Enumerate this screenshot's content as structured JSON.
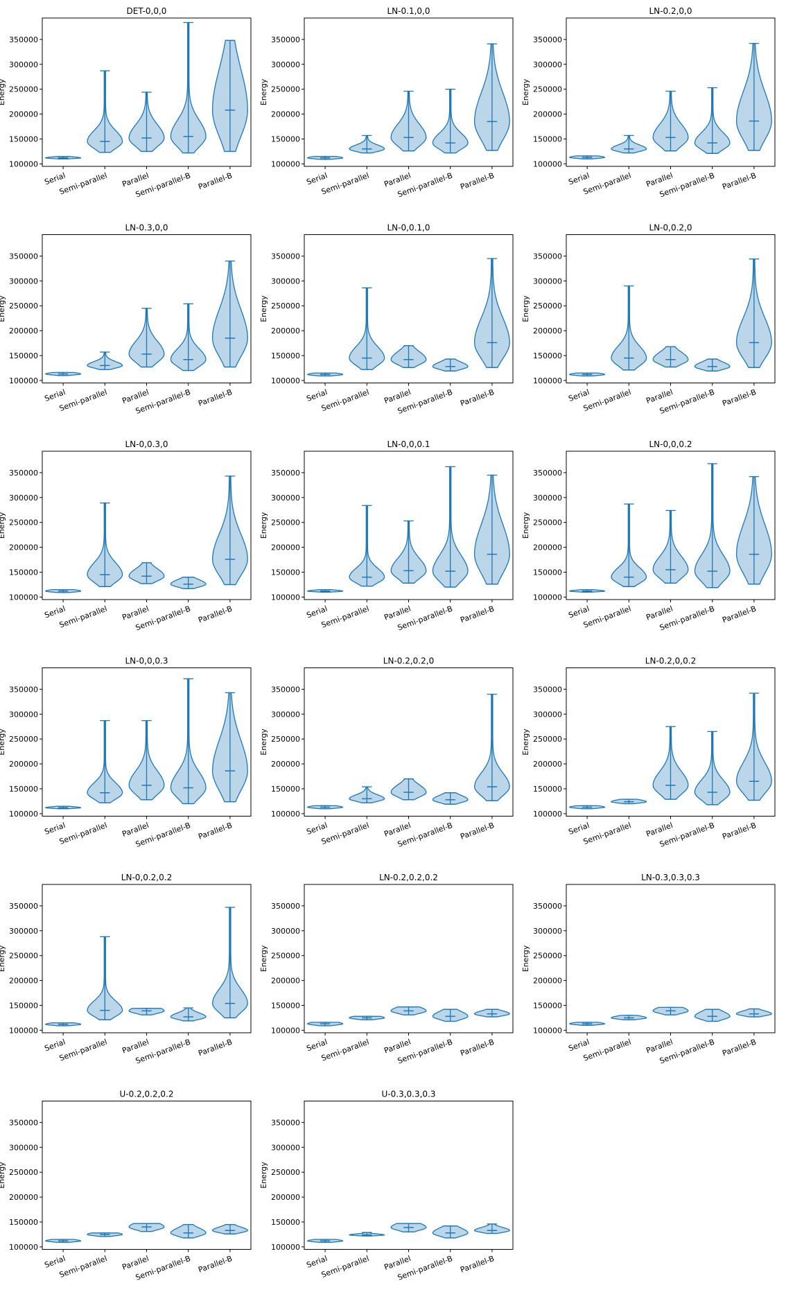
{
  "chart_data": [
    {
      "type": "violin",
      "title": "DET-0,0,0",
      "ylabel": "Energy",
      "categories": [
        "Serial",
        "Semi-parallel",
        "Parallel",
        "Semi-parallel-B",
        "Parallel-B"
      ],
      "min": [
        110000,
        123000,
        125000,
        122000,
        125000
      ],
      "median": [
        112000,
        145000,
        152000,
        155000,
        208000
      ],
      "max": [
        115000,
        287000,
        244000,
        384000,
        348000
      ],
      "color": "#1f77b4",
      "ylim": [
        95000,
        393000
      ],
      "yticks": [
        100000,
        150000,
        200000,
        250000,
        300000,
        350000
      ]
    },
    {
      "type": "violin",
      "title": "LN-0.1,0,0",
      "ylabel": "Energy",
      "categories": [
        "Serial",
        "Semi-parallel",
        "Parallel",
        "Semi-parallel-B",
        "Parallel-B"
      ],
      "min": [
        109000,
        122000,
        126000,
        122000,
        127000
      ],
      "median": [
        112000,
        130000,
        153000,
        142000,
        185000
      ],
      "max": [
        115000,
        157000,
        246000,
        250000,
        341000
      ],
      "color": "#1f77b4",
      "ylim": [
        95000,
        393000
      ],
      "yticks": [
        100000,
        150000,
        200000,
        250000,
        300000,
        350000
      ]
    },
    {
      "type": "violin",
      "title": "LN-0.2,0,0",
      "ylabel": "Energy",
      "categories": [
        "Serial",
        "Semi-parallel",
        "Parallel",
        "Semi-parallel-B",
        "Parallel-B"
      ],
      "min": [
        110000,
        122000,
        126000,
        121000,
        127000
      ],
      "median": [
        113000,
        130000,
        153000,
        142000,
        186000
      ],
      "max": [
        116000,
        157000,
        246000,
        253000,
        342000
      ],
      "color": "#1f77b4",
      "ylim": [
        95000,
        393000
      ],
      "yticks": [
        100000,
        150000,
        200000,
        250000,
        300000,
        350000
      ]
    },
    {
      "type": "violin",
      "title": "LN-0.3,0,0",
      "ylabel": "Energy",
      "categories": [
        "Serial",
        "Semi-parallel",
        "Parallel",
        "Semi-parallel-B",
        "Parallel-B"
      ],
      "min": [
        110000,
        122000,
        127000,
        120000,
        127000
      ],
      "median": [
        113000,
        130000,
        153000,
        142000,
        185000
      ],
      "max": [
        116000,
        157000,
        245000,
        254000,
        340000
      ],
      "color": "#1f77b4",
      "ylim": [
        95000,
        393000
      ],
      "yticks": [
        100000,
        150000,
        200000,
        250000,
        300000,
        350000
      ]
    },
    {
      "type": "violin",
      "title": "LN-0,0.1,0",
      "ylabel": "Energy",
      "categories": [
        "Serial",
        "Semi-parallel",
        "Parallel",
        "Semi-parallel-B",
        "Parallel-B"
      ],
      "min": [
        109000,
        122000,
        126000,
        119000,
        126000
      ],
      "median": [
        112000,
        145000,
        142000,
        128000,
        176000
      ],
      "max": [
        115000,
        286000,
        170000,
        143000,
        345000
      ],
      "color": "#1f77b4",
      "ylim": [
        95000,
        393000
      ],
      "yticks": [
        100000,
        150000,
        200000,
        250000,
        300000,
        350000
      ]
    },
    {
      "type": "violin",
      "title": "LN-0,0.2,0",
      "ylabel": "Energy",
      "categories": [
        "Serial",
        "Semi-parallel",
        "Parallel",
        "Semi-parallel-B",
        "Parallel-B"
      ],
      "min": [
        109000,
        121000,
        127000,
        119000,
        126000
      ],
      "median": [
        112000,
        145000,
        142000,
        128000,
        176000
      ],
      "max": [
        115000,
        290000,
        168000,
        143000,
        344000
      ],
      "color": "#1f77b4",
      "ylim": [
        95000,
        393000
      ],
      "yticks": [
        100000,
        150000,
        200000,
        250000,
        300000,
        350000
      ]
    },
    {
      "type": "violin",
      "title": "LN-0,0.3,0",
      "ylabel": "Energy",
      "categories": [
        "Serial",
        "Semi-parallel",
        "Parallel",
        "Semi-parallel-B",
        "Parallel-B"
      ],
      "min": [
        109000,
        121000,
        127000,
        117000,
        125000
      ],
      "median": [
        112000,
        145000,
        142000,
        126000,
        176000
      ],
      "max": [
        115000,
        289000,
        169000,
        140000,
        343000
      ],
      "color": "#1f77b4",
      "ylim": [
        95000,
        393000
      ],
      "yticks": [
        100000,
        150000,
        200000,
        250000,
        300000,
        350000
      ]
    },
    {
      "type": "violin",
      "title": "LN-0,0,0.1",
      "ylabel": "Energy",
      "categories": [
        "Serial",
        "Semi-parallel",
        "Parallel",
        "Semi-parallel-B",
        "Parallel-B"
      ],
      "min": [
        110000,
        122000,
        128000,
        120000,
        126000
      ],
      "median": [
        112000,
        140000,
        153000,
        152000,
        186000
      ],
      "max": [
        115000,
        284000,
        253000,
        362000,
        345000
      ],
      "color": "#1f77b4",
      "ylim": [
        95000,
        393000
      ],
      "yticks": [
        100000,
        150000,
        200000,
        250000,
        300000,
        350000
      ]
    },
    {
      "type": "violin",
      "title": "LN-0,0,0.2",
      "ylabel": "Energy",
      "categories": [
        "Serial",
        "Semi-parallel",
        "Parallel",
        "Semi-parallel-B",
        "Parallel-B"
      ],
      "min": [
        110000,
        121000,
        128000,
        119000,
        126000
      ],
      "median": [
        112000,
        140000,
        155000,
        152000,
        186000
      ],
      "max": [
        115000,
        287000,
        274000,
        368000,
        342000
      ],
      "color": "#1f77b4",
      "ylim": [
        95000,
        393000
      ],
      "yticks": [
        100000,
        150000,
        200000,
        250000,
        300000,
        350000
      ]
    },
    {
      "type": "violin",
      "title": "LN-0,0,0.3",
      "ylabel": "Energy",
      "categories": [
        "Serial",
        "Semi-parallel",
        "Parallel",
        "Semi-parallel-B",
        "Parallel-B"
      ],
      "min": [
        110000,
        122000,
        128000,
        120000,
        124000
      ],
      "median": [
        112000,
        142000,
        157000,
        152000,
        186000
      ],
      "max": [
        115000,
        287000,
        287000,
        371000,
        343000
      ],
      "color": "#1f77b4",
      "ylim": [
        95000,
        393000
      ],
      "yticks": [
        100000,
        150000,
        200000,
        250000,
        300000,
        350000
      ]
    },
    {
      "type": "violin",
      "title": "LN-0.2,0.2,0",
      "ylabel": "Energy",
      "categories": [
        "Serial",
        "Semi-parallel",
        "Parallel",
        "Semi-parallel-B",
        "Parallel-B"
      ],
      "min": [
        110000,
        122000,
        128000,
        119000,
        126000
      ],
      "median": [
        113000,
        130000,
        143000,
        128000,
        154000
      ],
      "max": [
        116000,
        154000,
        170000,
        142000,
        340000
      ],
      "color": "#1f77b4",
      "ylim": [
        95000,
        393000
      ],
      "yticks": [
        100000,
        150000,
        200000,
        250000,
        300000,
        350000
      ]
    },
    {
      "type": "violin",
      "title": "LN-0.2,0,0.2",
      "ylabel": "Energy",
      "categories": [
        "Serial",
        "Semi-parallel",
        "Parallel",
        "Semi-parallel-B",
        "Parallel-B"
      ],
      "min": [
        110000,
        120000,
        129000,
        118000,
        127000
      ],
      "median": [
        113000,
        124000,
        157000,
        143000,
        165000
      ],
      "max": [
        116000,
        129000,
        275000,
        265000,
        342000
      ],
      "color": "#1f77b4",
      "ylim": [
        95000,
        393000
      ],
      "yticks": [
        100000,
        150000,
        200000,
        250000,
        300000,
        350000
      ]
    },
    {
      "type": "violin",
      "title": "LN-0,0.2,0.2",
      "ylabel": "Energy",
      "categories": [
        "Serial",
        "Semi-parallel",
        "Parallel",
        "Semi-parallel-B",
        "Parallel-B"
      ],
      "min": [
        109000,
        121000,
        131000,
        119000,
        125000
      ],
      "median": [
        112000,
        140000,
        139000,
        127000,
        154000
      ],
      "max": [
        115000,
        288000,
        144000,
        145000,
        347000
      ],
      "color": "#1f77b4",
      "ylim": [
        95000,
        393000
      ],
      "yticks": [
        100000,
        150000,
        200000,
        250000,
        300000,
        350000
      ]
    },
    {
      "type": "violin",
      "title": "LN-0.2,0.2,0.2",
      "ylabel": "Energy",
      "categories": [
        "Serial",
        "Semi-parallel",
        "Parallel",
        "Semi-parallel-B",
        "Parallel-B"
      ],
      "min": [
        109000,
        121000,
        131000,
        118000,
        127000
      ],
      "median": [
        113000,
        125000,
        139000,
        128000,
        133000
      ],
      "max": [
        116000,
        128000,
        147000,
        142000,
        142000
      ],
      "color": "#1f77b4",
      "ylim": [
        95000,
        393000
      ],
      "yticks": [
        100000,
        150000,
        200000,
        250000,
        300000,
        350000
      ]
    },
    {
      "type": "violin",
      "title": "LN-0.3,0.3,0.3",
      "ylabel": "Energy",
      "categories": [
        "Serial",
        "Semi-parallel",
        "Parallel",
        "Semi-parallel-B",
        "Parallel-B"
      ],
      "min": [
        110000,
        121000,
        131000,
        118000,
        127000
      ],
      "median": [
        113000,
        125000,
        139000,
        128000,
        133000
      ],
      "max": [
        116000,
        130000,
        146000,
        142000,
        143000
      ],
      "color": "#1f77b4",
      "ylim": [
        95000,
        393000
      ],
      "yticks": [
        100000,
        150000,
        200000,
        250000,
        300000,
        350000
      ]
    },
    {
      "type": "violin",
      "title": "U-0.2,0.2,0.2",
      "ylabel": "Energy",
      "categories": [
        "Serial",
        "Semi-parallel",
        "Parallel",
        "Semi-parallel-B",
        "Parallel-B"
      ],
      "min": [
        109000,
        121000,
        131000,
        118000,
        126000
      ],
      "median": [
        112000,
        125000,
        140000,
        128000,
        133000
      ],
      "max": [
        115000,
        128000,
        147000,
        145000,
        145000
      ],
      "color": "#1f77b4",
      "ylim": [
        95000,
        393000
      ],
      "yticks": [
        100000,
        150000,
        200000,
        250000,
        300000,
        350000
      ]
    },
    {
      "type": "violin",
      "title": "U-0.3,0.3,0.3",
      "ylabel": "Energy",
      "categories": [
        "Serial",
        "Semi-parallel",
        "Parallel",
        "Semi-parallel-B",
        "Parallel-B"
      ],
      "min": [
        109000,
        122000,
        130000,
        118000,
        127000
      ],
      "median": [
        112000,
        124000,
        139000,
        128000,
        133000
      ],
      "max": [
        115000,
        129000,
        147000,
        142000,
        146000
      ],
      "color": "#1f77b4",
      "ylim": [
        95000,
        393000
      ],
      "yticks": [
        100000,
        150000,
        200000,
        250000,
        300000,
        350000
      ]
    }
  ]
}
